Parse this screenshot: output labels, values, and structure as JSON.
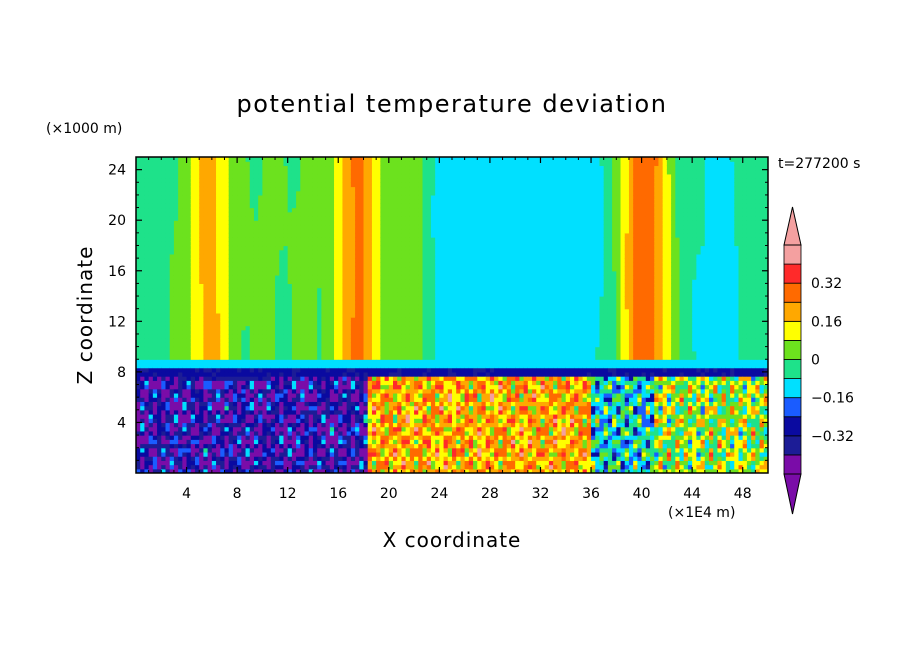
{
  "chart_data": {
    "type": "heatmap",
    "title": "potential temperature deviation",
    "xlabel": "X coordinate",
    "ylabel": "Z coordinate",
    "x_unit": "(×1E4 m)",
    "y_unit": "(×1000 m)",
    "time_label": "t=277200 s",
    "xlim": [
      0,
      50
    ],
    "ylim": [
      0,
      25
    ],
    "x_ticks": [
      4,
      8,
      12,
      16,
      20,
      24,
      28,
      32,
      36,
      40,
      44,
      48
    ],
    "y_ticks": [
      4,
      8,
      12,
      16,
      20,
      24
    ],
    "colorbar": {
      "levels": [
        -0.48,
        -0.4,
        -0.32,
        -0.24,
        -0.16,
        -0.08,
        0,
        0.08,
        0.16,
        0.24,
        0.32,
        0.4
      ],
      "labels": [
        "0.32",
        "0.16",
        "0",
        "−0.16",
        "−0.32"
      ],
      "label_values": [
        0.32,
        0.16,
        0,
        -0.16,
        -0.32
      ],
      "colors": [
        "#7a0ca8",
        "#1c1c96",
        "#0a0aa0",
        "#1a5cff",
        "#00e0ff",
        "#1ee28a",
        "#6ce21e",
        "#ffff00",
        "#ffa800",
        "#ff6a00",
        "#ff2a2a",
        "#f4a0a0"
      ],
      "under_color": "#7a0ca8",
      "over_color": "#f4a0a0"
    },
    "description_fields": {
      "upper_layer_z_range": [
        8,
        25
      ],
      "boundary_z": 8,
      "warm_columns_x": [
        5.5,
        17.5,
        22,
        40
      ]
    }
  }
}
